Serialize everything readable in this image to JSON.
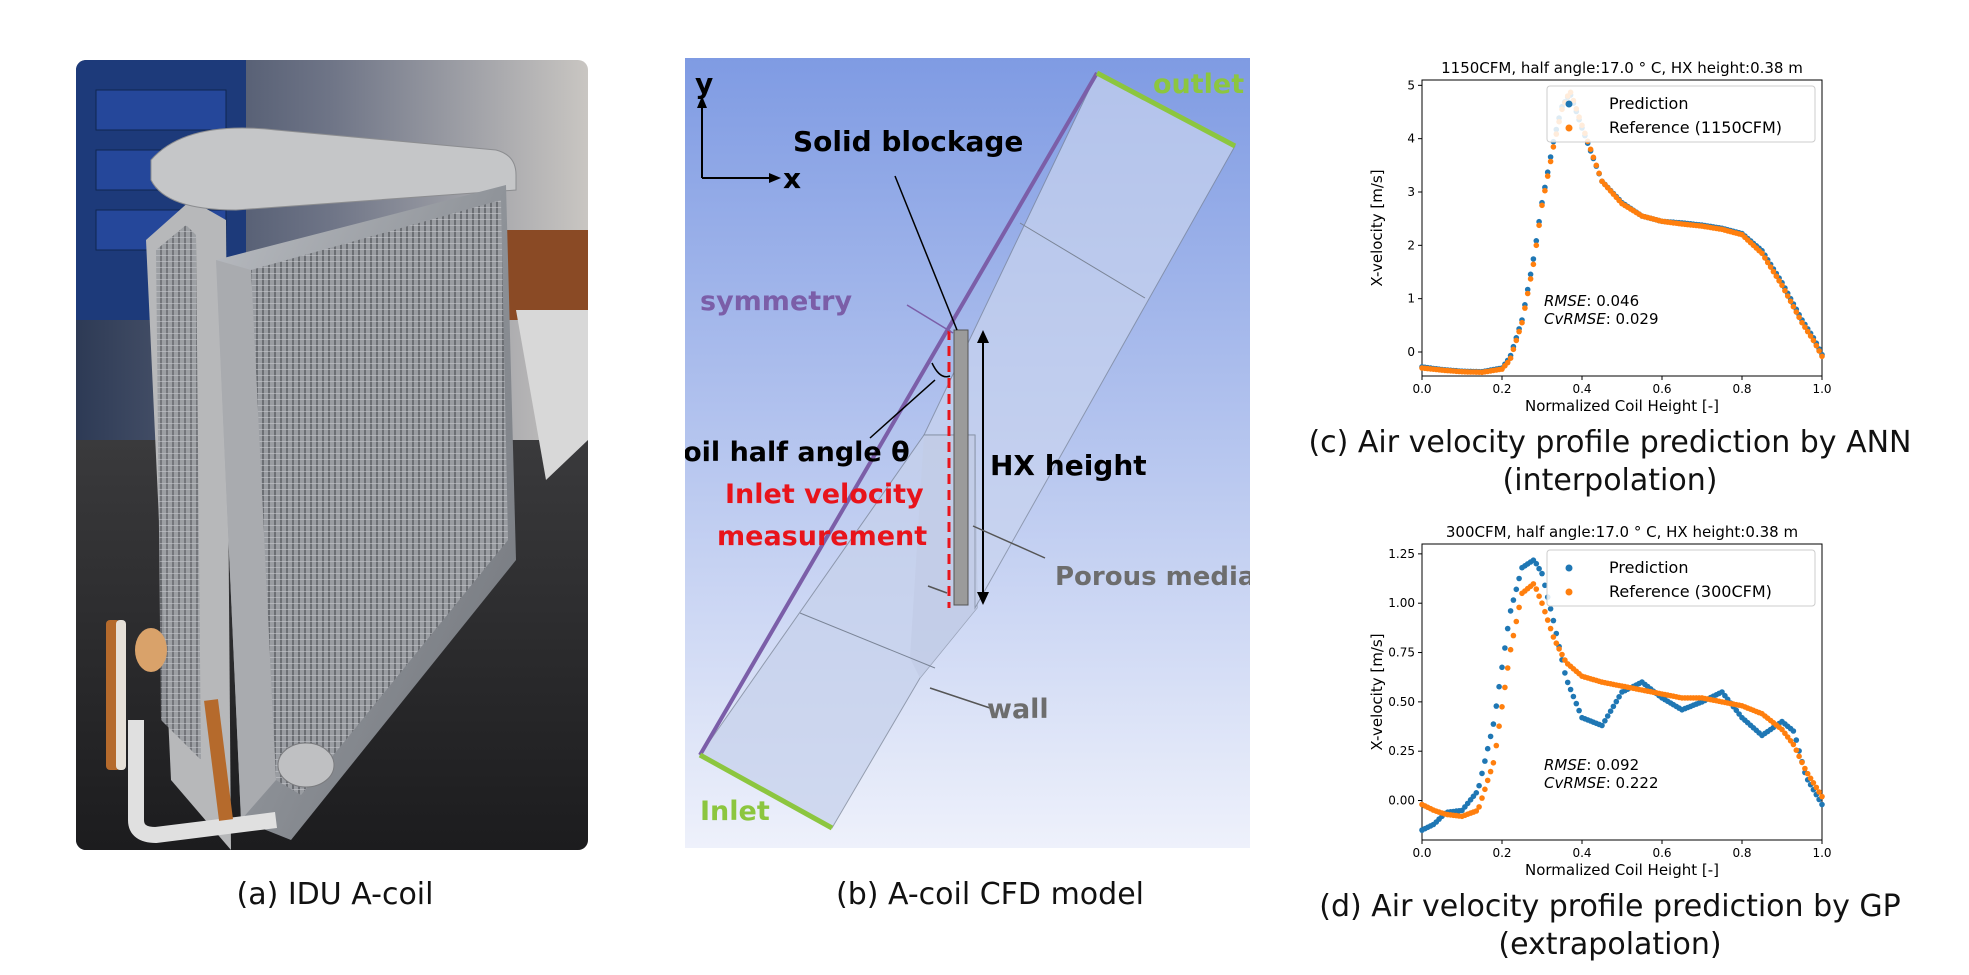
{
  "panel_a": {
    "caption": "(a) IDU A-coil"
  },
  "panel_b": {
    "caption": "(b) A-coil CFD model",
    "labels": {
      "y": "y",
      "x": "x",
      "outlet": "outlet",
      "solid_blockage": "Solid blockage",
      "symmetry": "symmetry",
      "half_angle": "A-coil half angle θ",
      "hx_height": "HX height",
      "inlet_velocity_1": "Inlet velocity",
      "inlet_velocity_2": "measurement",
      "porous": "Porous media zone",
      "wall": "wall",
      "inlet": "Inlet"
    },
    "colors": {
      "background_top": "#7f9be3",
      "background_bottom": "#eef1fb",
      "green": "#8cc63f",
      "purple": "#7b5ea8",
      "red": "#e8141b",
      "gray_label": "#6d6d6d"
    }
  },
  "panel_c": {
    "caption_line1": "(c) Air velocity profile prediction by ANN",
    "caption_line2": "(interpolation)"
  },
  "panel_d": {
    "caption_line1": "(d) Air velocity profile prediction by GP",
    "caption_line2": "(extrapolation)"
  },
  "chart_data": [
    {
      "id": "c",
      "type": "scatter",
      "title": "1150CFM, half angle:17.0 ° C, HX height:0.38 m",
      "xlabel": "Normalized Coil Height [-]",
      "ylabel": "X-velocity [m/s]",
      "xlim": [
        0,
        1.0
      ],
      "ylim": [
        -0.45,
        5.1
      ],
      "xticks": [
        "0.0",
        "0.2",
        "0.4",
        "0.6",
        "0.8",
        "1.0"
      ],
      "xtick_values": [
        0,
        0.2,
        0.4,
        0.6,
        0.8,
        1.0
      ],
      "yticks": [
        "0",
        "1",
        "2",
        "3",
        "4",
        "5"
      ],
      "ytick_values": [
        0,
        1,
        2,
        3,
        4,
        5
      ],
      "legend_position": "top-right",
      "rmse_label": "RMSE",
      "rmse_value": ": 0.046",
      "cvrmse_label": "CvRMSE",
      "cvrmse_value": ": 0.029",
      "series": [
        {
          "name": "Prediction",
          "color": "#1f77b4",
          "x": [
            0,
            0.05,
            0.1,
            0.15,
            0.2,
            0.22,
            0.25,
            0.28,
            0.3,
            0.33,
            0.35,
            0.37,
            0.4,
            0.45,
            0.5,
            0.55,
            0.6,
            0.65,
            0.7,
            0.75,
            0.8,
            0.85,
            0.9,
            0.95,
            0.98,
            1.0
          ],
          "y": [
            -0.28,
            -0.33,
            -0.36,
            -0.37,
            -0.3,
            -0.1,
            0.6,
            1.8,
            2.8,
            4.0,
            4.6,
            4.85,
            4.2,
            3.2,
            2.8,
            2.55,
            2.45,
            2.42,
            2.38,
            2.32,
            2.22,
            1.9,
            1.3,
            0.6,
            0.25,
            -0.05
          ]
        },
        {
          "name": "Reference (1150CFM)",
          "color": "#ff7f0e",
          "x": [
            0,
            0.05,
            0.1,
            0.15,
            0.2,
            0.22,
            0.25,
            0.28,
            0.3,
            0.33,
            0.35,
            0.37,
            0.4,
            0.45,
            0.5,
            0.55,
            0.6,
            0.65,
            0.7,
            0.75,
            0.8,
            0.85,
            0.9,
            0.95,
            0.98,
            1.0
          ],
          "y": [
            -0.3,
            -0.34,
            -0.37,
            -0.38,
            -0.32,
            -0.15,
            0.55,
            1.7,
            2.75,
            3.9,
            4.55,
            4.9,
            4.25,
            3.2,
            2.78,
            2.55,
            2.45,
            2.4,
            2.36,
            2.3,
            2.2,
            1.85,
            1.25,
            0.55,
            0.2,
            -0.08
          ]
        }
      ]
    },
    {
      "id": "d",
      "type": "scatter",
      "title": "300CFM, half angle:17.0 ° C, HX height:0.38 m",
      "xlabel": "Normalized Coil Height [-]",
      "ylabel": "X-velocity [m/s]",
      "xlim": [
        0,
        1.0
      ],
      "ylim": [
        -0.2,
        1.3
      ],
      "xticks": [
        "0.0",
        "0.2",
        "0.4",
        "0.6",
        "0.8",
        "1.0"
      ],
      "xtick_values": [
        0,
        0.2,
        0.4,
        0.6,
        0.8,
        1.0
      ],
      "yticks": [
        "0.00",
        "0.25",
        "0.50",
        "0.75",
        "1.00",
        "1.25"
      ],
      "ytick_values": [
        0,
        0.25,
        0.5,
        0.75,
        1.0,
        1.25
      ],
      "legend_position": "top-right",
      "rmse_label": "RMSE",
      "rmse_value": ": 0.092",
      "cvrmse_label": "CvRMSE",
      "cvrmse_value": ": 0.222",
      "series": [
        {
          "name": "Prediction",
          "color": "#1f77b4",
          "x": [
            0,
            0.03,
            0.06,
            0.1,
            0.14,
            0.18,
            0.22,
            0.25,
            0.28,
            0.3,
            0.33,
            0.36,
            0.4,
            0.45,
            0.5,
            0.55,
            0.6,
            0.65,
            0.7,
            0.75,
            0.8,
            0.85,
            0.9,
            0.93,
            0.96,
            1.0
          ],
          "y": [
            -0.15,
            -0.12,
            -0.06,
            -0.05,
            0.05,
            0.4,
            0.95,
            1.18,
            1.22,
            1.15,
            0.9,
            0.62,
            0.42,
            0.38,
            0.55,
            0.6,
            0.52,
            0.46,
            0.5,
            0.55,
            0.42,
            0.33,
            0.4,
            0.35,
            0.12,
            -0.02
          ]
        },
        {
          "name": "Reference (300CFM)",
          "color": "#ff7f0e",
          "x": [
            0,
            0.03,
            0.06,
            0.1,
            0.14,
            0.18,
            0.22,
            0.25,
            0.28,
            0.3,
            0.33,
            0.36,
            0.4,
            0.45,
            0.5,
            0.55,
            0.6,
            0.65,
            0.7,
            0.75,
            0.8,
            0.85,
            0.9,
            0.93,
            0.96,
            1.0
          ],
          "y": [
            -0.02,
            -0.05,
            -0.07,
            -0.08,
            -0.05,
            0.2,
            0.75,
            1.05,
            1.1,
            1.0,
            0.82,
            0.7,
            0.63,
            0.6,
            0.58,
            0.56,
            0.54,
            0.52,
            0.52,
            0.5,
            0.48,
            0.44,
            0.36,
            0.28,
            0.15,
            0.02
          ]
        }
      ]
    }
  ]
}
